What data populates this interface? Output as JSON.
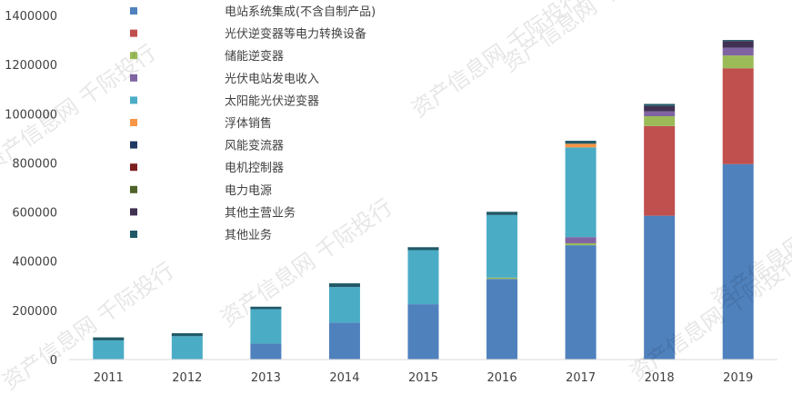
{
  "chart_data": {
    "type": "bar",
    "stacked": true,
    "categories": [
      "2011",
      "2012",
      "2013",
      "2014",
      "2015",
      "2016",
      "2017",
      "2018",
      "2019"
    ],
    "ylim": [
      0,
      1400000
    ],
    "yticks": [
      0,
      200000,
      400000,
      600000,
      800000,
      1000000,
      1200000,
      1400000
    ],
    "ytick_labels": [
      "0",
      "200000",
      "400000",
      "600000",
      "800000",
      "1000000",
      "1200000",
      "1400000"
    ],
    "grid": "none",
    "legend_position": "top-left",
    "series": [
      {
        "name": "电站系统集成(不含自制产品)",
        "color": "#4f81bd",
        "values": [
          0,
          0,
          65000,
          150000,
          225000,
          328000,
          465000,
          585000,
          795000
        ]
      },
      {
        "name": "光伏逆变器等电力转换设备",
        "color": "#c0504d",
        "values": [
          0,
          0,
          0,
          0,
          0,
          0,
          0,
          365000,
          390000
        ]
      },
      {
        "name": "储能逆变器",
        "color": "#9bbb59",
        "values": [
          0,
          0,
          0,
          0,
          0,
          5000,
          8000,
          40000,
          52000
        ]
      },
      {
        "name": "光伏电站发电收入",
        "color": "#8064a2",
        "values": [
          0,
          0,
          0,
          0,
          0,
          0,
          25000,
          20000,
          32000
        ]
      },
      {
        "name": "太阳能光伏逆变器",
        "color": "#4bacc6",
        "values": [
          78000,
          95000,
          140000,
          145000,
          220000,
          255000,
          365000,
          0,
          0
        ]
      },
      {
        "name": "浮体销售",
        "color": "#f79646",
        "values": [
          0,
          0,
          0,
          0,
          0,
          0,
          15000,
          0,
          0
        ]
      },
      {
        "name": "风能变流器",
        "color": "#1f3864",
        "values": [
          0,
          0,
          0,
          0,
          0,
          0,
          0,
          0,
          0
        ]
      },
      {
        "name": "电机控制器",
        "color": "#7f2020",
        "values": [
          0,
          0,
          0,
          0,
          0,
          0,
          0,
          0,
          0
        ]
      },
      {
        "name": "电力电源",
        "color": "#4f6228",
        "values": [
          0,
          0,
          0,
          0,
          0,
          0,
          0,
          0,
          0
        ]
      },
      {
        "name": "其他主营业务",
        "color": "#403152",
        "values": [
          0,
          0,
          0,
          0,
          0,
          0,
          0,
          22000,
          27000
        ]
      },
      {
        "name": "其他业务",
        "color": "#215967",
        "values": [
          12000,
          12000,
          10000,
          15000,
          12000,
          13000,
          12000,
          8000,
          4000
        ]
      }
    ]
  },
  "watermark": "资产信息网 千际投行"
}
